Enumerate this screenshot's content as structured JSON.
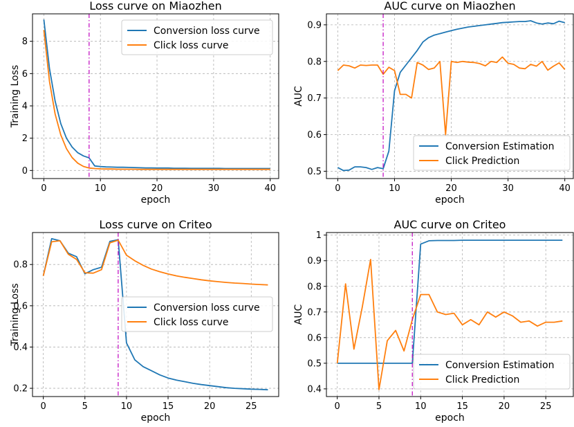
{
  "chart_data": [
    {
      "type": "line",
      "title": "Loss curve on Miaozhen",
      "xlabel": "epoch",
      "ylabel": "Training Loss",
      "xlim": [
        -2,
        41.5
      ],
      "ylim": [
        -0.5,
        9.7
      ],
      "xticks": [
        0,
        10,
        20,
        30,
        40
      ],
      "yticks": [
        0,
        2,
        4,
        6,
        8
      ],
      "vline_x": 8,
      "legend_position": "top-right",
      "series": [
        {
          "name": "Conversion loss curve",
          "color": "#1f77b4",
          "x": [
            0,
            1,
            2,
            3,
            4,
            5,
            6,
            7,
            8,
            9,
            10,
            11,
            12,
            13,
            14,
            15,
            16,
            17,
            18,
            19,
            20,
            21,
            22,
            23,
            24,
            25,
            26,
            27,
            28,
            29,
            30,
            31,
            32,
            33,
            34,
            35,
            36,
            37,
            38,
            39,
            40
          ],
          "y": [
            9.35,
            6.3,
            4.3,
            2.9,
            2.0,
            1.45,
            1.1,
            0.9,
            0.78,
            0.28,
            0.24,
            0.22,
            0.21,
            0.2,
            0.2,
            0.19,
            0.18,
            0.17,
            0.16,
            0.16,
            0.15,
            0.15,
            0.15,
            0.14,
            0.14,
            0.14,
            0.13,
            0.13,
            0.13,
            0.13,
            0.13,
            0.13,
            0.12,
            0.12,
            0.12,
            0.12,
            0.12,
            0.12,
            0.12,
            0.12,
            0.12
          ]
        },
        {
          "name": "Click loss curve",
          "color": "#ff7f0e",
          "x": [
            0,
            1,
            2,
            3,
            4,
            5,
            6,
            7,
            8,
            9,
            10,
            11,
            12,
            13,
            14,
            15,
            16,
            17,
            18,
            19,
            20,
            21,
            22,
            23,
            24,
            25,
            26,
            27,
            28,
            29,
            30,
            31,
            32,
            33,
            34,
            35,
            36,
            37,
            38,
            39,
            40
          ],
          "y": [
            8.7,
            5.5,
            3.5,
            2.2,
            1.35,
            0.8,
            0.45,
            0.25,
            0.15,
            0.12,
            0.1,
            0.09,
            0.09,
            0.08,
            0.08,
            0.08,
            0.08,
            0.07,
            0.07,
            0.07,
            0.07,
            0.07,
            0.07,
            0.07,
            0.07,
            0.07,
            0.07,
            0.07,
            0.07,
            0.07,
            0.07,
            0.07,
            0.07,
            0.07,
            0.07,
            0.07,
            0.07,
            0.07,
            0.07,
            0.07,
            0.07
          ]
        }
      ]
    },
    {
      "type": "line",
      "title": "AUC curve on Miaozhen",
      "xlabel": "epoch",
      "ylabel": "AUC",
      "xlim": [
        -2,
        41.5
      ],
      "ylim": [
        0.48,
        0.93
      ],
      "xticks": [
        0,
        10,
        20,
        30,
        40
      ],
      "yticks": [
        0.5,
        0.6,
        0.7,
        0.8,
        0.9
      ],
      "vline_x": 8,
      "legend_position": "bottom-right",
      "series": [
        {
          "name": "Conversion Estimation",
          "color": "#1f77b4",
          "x": [
            0,
            1,
            2,
            3,
            4,
            5,
            6,
            7,
            8,
            9,
            10,
            11,
            12,
            13,
            14,
            15,
            16,
            17,
            18,
            19,
            20,
            21,
            22,
            23,
            24,
            25,
            26,
            27,
            28,
            29,
            30,
            31,
            32,
            33,
            34,
            35,
            36,
            37,
            38,
            39,
            40
          ],
          "y": [
            0.51,
            0.502,
            0.503,
            0.512,
            0.512,
            0.51,
            0.505,
            0.51,
            0.507,
            0.555,
            0.72,
            0.77,
            0.79,
            0.81,
            0.83,
            0.853,
            0.865,
            0.872,
            0.876,
            0.88,
            0.884,
            0.888,
            0.891,
            0.894,
            0.896,
            0.898,
            0.9,
            0.902,
            0.904,
            0.906,
            0.907,
            0.908,
            0.909,
            0.909,
            0.911,
            0.905,
            0.902,
            0.905,
            0.903,
            0.91,
            0.906
          ]
        },
        {
          "name": "Click Prediction",
          "color": "#ff7f0e",
          "x": [
            0,
            1,
            2,
            3,
            4,
            5,
            6,
            7,
            8,
            9,
            10,
            11,
            12,
            13,
            14,
            15,
            16,
            17,
            18,
            19,
            20,
            21,
            22,
            23,
            24,
            25,
            26,
            27,
            28,
            29,
            30,
            31,
            32,
            33,
            34,
            35,
            36,
            37,
            38,
            39,
            40
          ],
          "y": [
            0.775,
            0.79,
            0.788,
            0.782,
            0.79,
            0.789,
            0.79,
            0.79,
            0.765,
            0.784,
            0.775,
            0.71,
            0.71,
            0.7,
            0.797,
            0.79,
            0.778,
            0.782,
            0.8,
            0.6,
            0.8,
            0.797,
            0.8,
            0.798,
            0.797,
            0.794,
            0.788,
            0.8,
            0.797,
            0.812,
            0.795,
            0.792,
            0.782,
            0.78,
            0.792,
            0.787,
            0.8,
            0.776,
            0.787,
            0.796,
            0.778
          ]
        }
      ]
    },
    {
      "type": "line",
      "title": "Loss curve on Criteo",
      "xlabel": "epoch",
      "ylabel": "Training Loss",
      "xlim": [
        -1.3,
        28.3
      ],
      "ylim": [
        0.16,
        0.955
      ],
      "xticks": [
        0,
        5,
        10,
        15,
        20,
        25
      ],
      "yticks": [
        0.2,
        0.4,
        0.6,
        0.8
      ],
      "vline_x": 9,
      "legend_position": "center-right",
      "series": [
        {
          "name": "Conversion loss curve",
          "color": "#1f77b4",
          "x": [
            0,
            1,
            2,
            3,
            4,
            5,
            6,
            7,
            8,
            9,
            10,
            11,
            12,
            13,
            14,
            15,
            16,
            17,
            18,
            19,
            20,
            21,
            22,
            23,
            24,
            25,
            26,
            27
          ],
          "y": [
            0.745,
            0.925,
            0.915,
            0.855,
            0.838,
            0.755,
            0.775,
            0.787,
            0.912,
            0.92,
            0.42,
            0.338,
            0.305,
            0.285,
            0.265,
            0.25,
            0.24,
            0.232,
            0.224,
            0.218,
            0.213,
            0.208,
            0.203,
            0.2,
            0.198,
            0.196,
            0.195,
            0.193
          ]
        },
        {
          "name": "Click loss curve",
          "color": "#ff7f0e",
          "x": [
            0,
            1,
            2,
            3,
            4,
            5,
            6,
            7,
            8,
            9,
            10,
            11,
            12,
            13,
            14,
            15,
            16,
            17,
            18,
            19,
            20,
            21,
            22,
            23,
            24,
            25,
            26,
            27
          ],
          "y": [
            0.745,
            0.91,
            0.915,
            0.85,
            0.825,
            0.76,
            0.758,
            0.775,
            0.905,
            0.918,
            0.845,
            0.818,
            0.796,
            0.778,
            0.765,
            0.754,
            0.745,
            0.738,
            0.732,
            0.726,
            0.721,
            0.717,
            0.713,
            0.71,
            0.708,
            0.705,
            0.703,
            0.701
          ]
        }
      ]
    },
    {
      "type": "line",
      "title": "AUC curve on Criteo",
      "xlabel": "epoch",
      "ylabel": "AUC",
      "xlim": [
        -1.3,
        28.3
      ],
      "ylim": [
        0.37,
        1.01
      ],
      "xticks": [
        0,
        5,
        10,
        15,
        20,
        25
      ],
      "yticks": [
        0.4,
        0.5,
        0.6,
        0.7,
        0.8,
        0.9,
        1.0
      ],
      "vline_x": 9,
      "legend_position": "bottom-right",
      "series": [
        {
          "name": "Conversion Estimation",
          "color": "#1f77b4",
          "x": [
            0,
            1,
            2,
            3,
            4,
            5,
            6,
            7,
            8,
            9,
            10,
            11,
            12,
            13,
            14,
            15,
            16,
            17,
            18,
            19,
            20,
            21,
            22,
            23,
            24,
            25,
            26,
            27
          ],
          "y": [
            0.5,
            0.5,
            0.5,
            0.5,
            0.5,
            0.5,
            0.5,
            0.5,
            0.5,
            0.5,
            0.965,
            0.978,
            0.979,
            0.979,
            0.979,
            0.98,
            0.98,
            0.98,
            0.98,
            0.98,
            0.98,
            0.98,
            0.98,
            0.98,
            0.98,
            0.98,
            0.98,
            0.98
          ]
        },
        {
          "name": "Click Prediction",
          "color": "#ff7f0e",
          "x": [
            0,
            1,
            2,
            3,
            4,
            5,
            6,
            7,
            8,
            9,
            10,
            11,
            12,
            13,
            14,
            15,
            16,
            17,
            18,
            19,
            20,
            21,
            22,
            23,
            24,
            25,
            26,
            27
          ],
          "y": [
            0.5,
            0.81,
            0.555,
            0.72,
            0.905,
            0.397,
            0.588,
            0.628,
            0.548,
            0.67,
            0.768,
            0.768,
            0.7,
            0.69,
            0.695,
            0.65,
            0.67,
            0.65,
            0.7,
            0.68,
            0.7,
            0.685,
            0.66,
            0.665,
            0.645,
            0.66,
            0.66,
            0.665
          ]
        }
      ]
    }
  ]
}
